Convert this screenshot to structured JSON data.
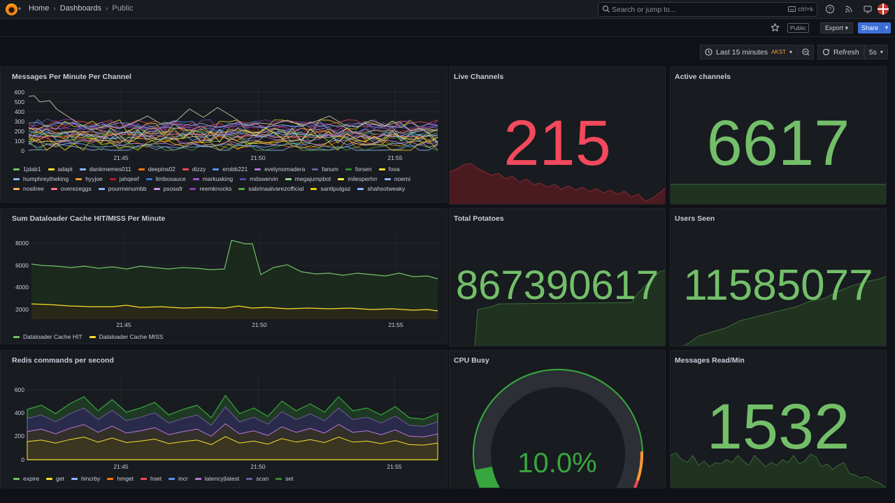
{
  "nav": {
    "breadcrumbs": [
      "Home",
      "Dashboards",
      "Public"
    ],
    "search_placeholder": "Search or jump to...",
    "search_shortcut": "ctrl+k"
  },
  "toolbar": {
    "public_tag": "Public",
    "export_label": "Export",
    "share_label": "Share",
    "time_range": "Last 15 minutes",
    "timezone": "AKST",
    "refresh_label": "Refresh",
    "refresh_interval": "5s"
  },
  "panels": {
    "messages_per_minute": {
      "title": "Messages Per Minute Per Channel",
      "y_ticks": [
        "600",
        "500",
        "400",
        "300",
        "200",
        "100",
        "0"
      ],
      "x_ticks": [
        "21:45",
        "21:50",
        "21:55"
      ],
      "legend": [
        {
          "name": "1jdab1",
          "color": "#73bf69"
        },
        {
          "name": "adapt",
          "color": "#fade2a"
        },
        {
          "name": "dankmemes011",
          "color": "#8ab8ff"
        },
        {
          "name": "deepins02",
          "color": "#ff780a"
        },
        {
          "name": "dizzy",
          "color": "#f2495c"
        },
        {
          "name": "erobb221",
          "color": "#5794f2"
        },
        {
          "name": "evelynomadera",
          "color": "#b877d9"
        },
        {
          "name": "fanum",
          "color": "#705da0"
        },
        {
          "name": "forsen",
          "color": "#37872d"
        },
        {
          "name": "fova",
          "color": "#fade2a"
        },
        {
          "name": "humphreytheking",
          "color": "#8ab8ff"
        },
        {
          "name": "hyyjoe",
          "color": "#ff9830"
        },
        {
          "name": "jahqeef",
          "color": "#c4162a"
        },
        {
          "name": "limbosauce",
          "color": "#3274d9"
        },
        {
          "name": "markusking",
          "color": "#a352cc"
        },
        {
          "name": "mdswervin",
          "color": "#5e4aa8"
        },
        {
          "name": "megajumpbot",
          "color": "#96d98d"
        },
        {
          "name": "milesperhrr",
          "color": "#ffee52"
        },
        {
          "name": "noemi",
          "color": "#8ab8ff"
        },
        {
          "name": "nosilree",
          "color": "#ffb357"
        },
        {
          "name": "overezeggs",
          "color": "#ff7383"
        },
        {
          "name": "pourmenumbb",
          "color": "#8ab8ff"
        },
        {
          "name": "psosafr",
          "color": "#ca95e5"
        },
        {
          "name": "reemknocks",
          "color": "#8f3bb8"
        },
        {
          "name": "sabrinaalvarezofficial",
          "color": "#56a64b"
        },
        {
          "name": "santipulgaz",
          "color": "#f2cc0c"
        },
        {
          "name": "shahsotweaky",
          "color": "#8ab8ff"
        }
      ]
    },
    "live_channels": {
      "title": "Live Channels",
      "value": "215",
      "color": "#f2495c"
    },
    "active_channels": {
      "title": "Active channels",
      "value": "6617",
      "color": "#73bf69"
    },
    "dataloader": {
      "title": "Sum Dataloader Cache HIT/MISS Per Minute",
      "y_ticks": [
        "8000",
        "6000",
        "4000",
        "2000"
      ],
      "x_ticks": [
        "21:45",
        "21:50",
        "21:55"
      ],
      "legend": [
        {
          "name": "Dataloader Cache HIT",
          "color": "#73bf69"
        },
        {
          "name": "Dataloader Cache MISS",
          "color": "#fade2a"
        }
      ]
    },
    "total_potatoes": {
      "title": "Total Potatoes",
      "value": "867390617",
      "color": "#73bf69"
    },
    "users_seen": {
      "title": "Users Seen",
      "value": "11585077",
      "color": "#73bf69"
    },
    "redis": {
      "title": "Redis commands per second",
      "y_ticks": [
        "600",
        "400",
        "200",
        "0"
      ],
      "x_ticks": [
        "21:45",
        "21:50",
        "21:55"
      ],
      "legend": [
        {
          "name": "expire",
          "color": "#73bf69"
        },
        {
          "name": "get",
          "color": "#fade2a"
        },
        {
          "name": "hincrby",
          "color": "#8ab8ff"
        },
        {
          "name": "hmget",
          "color": "#ff780a"
        },
        {
          "name": "hset",
          "color": "#f2495c"
        },
        {
          "name": "incr",
          "color": "#5794f2"
        },
        {
          "name": "latency|latest",
          "color": "#b877d9"
        },
        {
          "name": "scan",
          "color": "#705da0"
        },
        {
          "name": "set",
          "color": "#37872d"
        }
      ]
    },
    "cpu_busy": {
      "title": "CPU Busy",
      "value": "10.0%",
      "fraction": 0.1,
      "color": "#37a63f"
    },
    "messages_read": {
      "title": "Messages Read/Min",
      "value": "1532",
      "color": "#73bf69"
    }
  }
}
